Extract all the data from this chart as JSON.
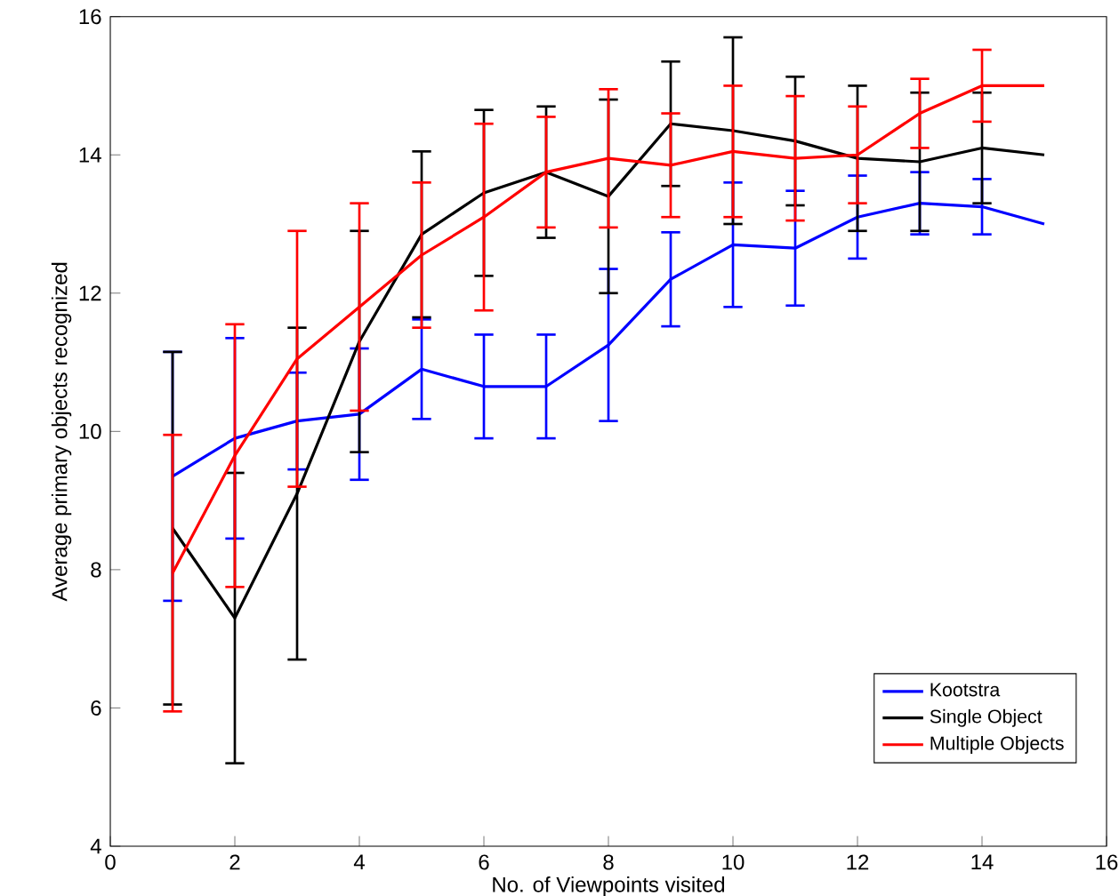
{
  "chart_data": {
    "type": "line",
    "xlabel": "No. of Viewpoints visited",
    "ylabel": "Average primary objects recognized",
    "x": [
      1,
      2,
      3,
      4,
      5,
      6,
      7,
      8,
      9,
      10,
      11,
      12,
      13,
      14,
      15
    ],
    "xlim": [
      0,
      16
    ],
    "xticks": [
      0,
      2,
      4,
      6,
      8,
      10,
      12,
      14,
      16
    ],
    "ylim": [
      4,
      16
    ],
    "yticks": [
      4,
      6,
      8,
      10,
      12,
      14,
      16
    ],
    "grid": false,
    "legend": "bottom right",
    "marker": "none",
    "line_style": "solid",
    "series": [
      {
        "name": "Kootstra",
        "color": "#0000ff",
        "values": [
          9.35,
          9.9,
          10.15,
          10.25,
          10.9,
          10.65,
          10.65,
          11.25,
          12.2,
          12.7,
          12.65,
          13.1,
          13.3,
          13.25,
          13.0
        ],
        "errors": [
          1.8,
          1.45,
          0.7,
          0.95,
          0.72,
          0.75,
          0.75,
          1.1,
          0.68,
          0.9,
          0.83,
          0.6,
          0.45,
          0.4,
          null
        ]
      },
      {
        "name": "Single Object",
        "color": "#000000",
        "values": [
          8.6,
          7.3,
          9.1,
          11.3,
          12.85,
          13.45,
          13.75,
          13.4,
          14.45,
          14.35,
          14.2,
          13.95,
          13.9,
          14.1,
          14.0
        ],
        "errors": [
          2.55,
          2.1,
          2.4,
          1.6,
          1.2,
          1.2,
          0.95,
          1.4,
          0.9,
          1.35,
          0.93,
          1.05,
          1.0,
          0.8,
          null
        ]
      },
      {
        "name": "Multiple Objects",
        "color": "#ff0000",
        "values": [
          7.95,
          9.65,
          11.05,
          11.8,
          12.55,
          13.1,
          13.75,
          13.95,
          13.85,
          14.05,
          13.95,
          14.0,
          14.6,
          15.0,
          15.0
        ],
        "errors": [
          2.0,
          1.9,
          1.85,
          1.5,
          1.05,
          1.35,
          0.8,
          1.0,
          0.75,
          0.95,
          0.9,
          0.7,
          0.5,
          0.52,
          null
        ]
      }
    ]
  }
}
